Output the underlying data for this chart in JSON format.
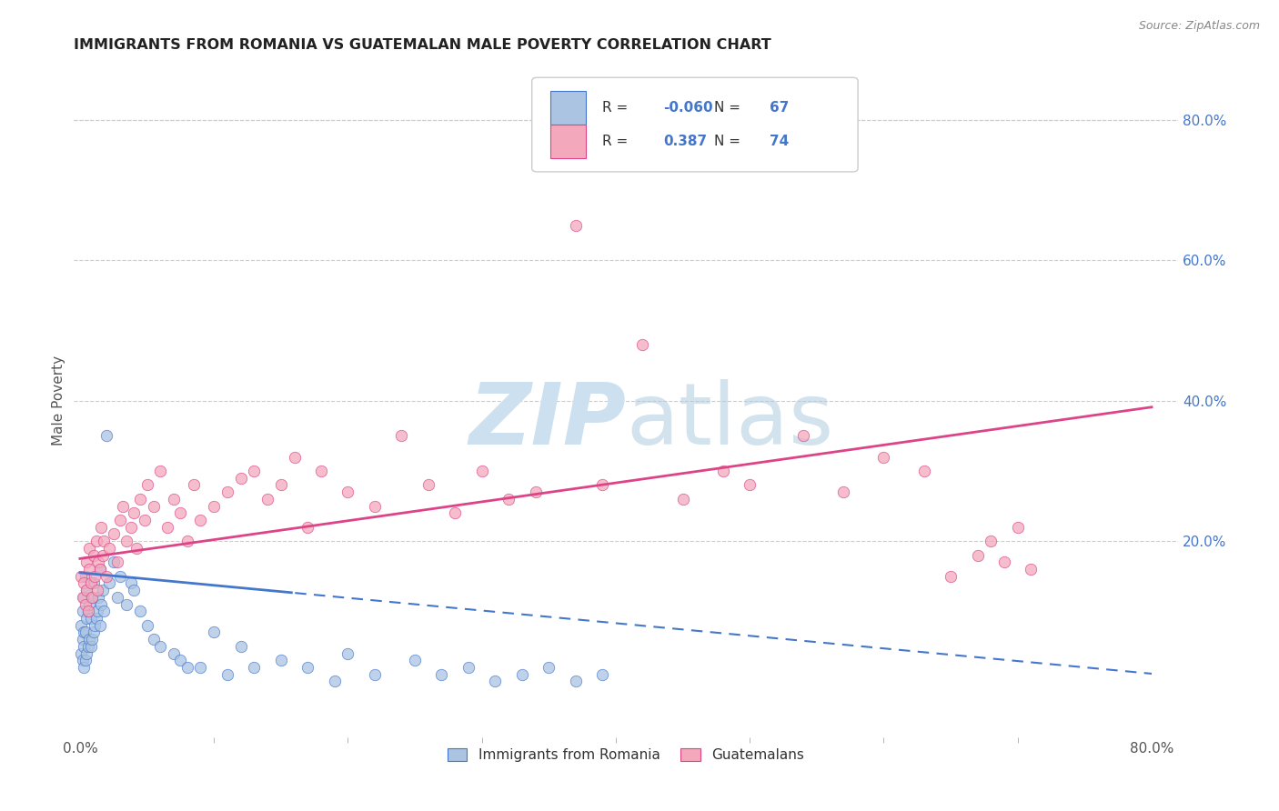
{
  "title": "IMMIGRANTS FROM ROMANIA VS GUATEMALAN MALE POVERTY CORRELATION CHART",
  "source": "Source: ZipAtlas.com",
  "ylabel": "Male Poverty",
  "right_yticks": [
    "80.0%",
    "60.0%",
    "40.0%",
    "20.0%"
  ],
  "right_ytick_vals": [
    0.8,
    0.6,
    0.4,
    0.2
  ],
  "xlim_min": -0.005,
  "xlim_max": 0.82,
  "ylim_min": -0.08,
  "ylim_max": 0.88,
  "romania_color": "#aac4e2",
  "romania_edge": "#4477cc",
  "guatemalan_color": "#f4a8bc",
  "guatemalan_edge": "#dd4488",
  "trend_romania_color": "#4477cc",
  "trend_guatemalan_color": "#dd4488",
  "background_color": "#ffffff",
  "grid_color": "#cccccc",
  "watermark_color": "#cce0f0",
  "legend_r1_label": "R = ",
  "legend_r1_val": "-0.060",
  "legend_n1_label": "N = ",
  "legend_n1_val": "67",
  "legend_r2_label": "R =  ",
  "legend_r2_val": "0.387",
  "legend_n2_label": "N = ",
  "legend_n2_val": "74",
  "romania_scatter_x": [
    0.001,
    0.001,
    0.002,
    0.002,
    0.002,
    0.003,
    0.003,
    0.003,
    0.003,
    0.004,
    0.004,
    0.004,
    0.005,
    0.005,
    0.005,
    0.006,
    0.006,
    0.007,
    0.007,
    0.008,
    0.008,
    0.009,
    0.009,
    0.01,
    0.01,
    0.011,
    0.012,
    0.013,
    0.014,
    0.015,
    0.015,
    0.016,
    0.017,
    0.018,
    0.02,
    0.022,
    0.025,
    0.028,
    0.03,
    0.035,
    0.038,
    0.04,
    0.045,
    0.05,
    0.055,
    0.06,
    0.07,
    0.075,
    0.08,
    0.09,
    0.1,
    0.11,
    0.12,
    0.13,
    0.15,
    0.17,
    0.19,
    0.2,
    0.22,
    0.25,
    0.27,
    0.29,
    0.31,
    0.33,
    0.35,
    0.37,
    0.39
  ],
  "romania_scatter_y": [
    0.04,
    0.08,
    0.03,
    0.06,
    0.1,
    0.02,
    0.05,
    0.07,
    0.12,
    0.03,
    0.07,
    0.15,
    0.04,
    0.09,
    0.13,
    0.05,
    0.1,
    0.06,
    0.11,
    0.05,
    0.09,
    0.06,
    0.12,
    0.07,
    0.14,
    0.08,
    0.09,
    0.1,
    0.12,
    0.08,
    0.16,
    0.11,
    0.13,
    0.1,
    0.35,
    0.14,
    0.17,
    0.12,
    0.15,
    0.11,
    0.14,
    0.13,
    0.1,
    0.08,
    0.06,
    0.05,
    0.04,
    0.03,
    0.02,
    0.02,
    0.07,
    0.01,
    0.05,
    0.02,
    0.03,
    0.02,
    0.0,
    0.04,
    0.01,
    0.03,
    0.01,
    0.02,
    0.0,
    0.01,
    0.02,
    0.0,
    0.01
  ],
  "guatemalan_scatter_x": [
    0.001,
    0.002,
    0.003,
    0.004,
    0.005,
    0.005,
    0.006,
    0.007,
    0.007,
    0.008,
    0.009,
    0.01,
    0.011,
    0.012,
    0.013,
    0.014,
    0.015,
    0.016,
    0.017,
    0.018,
    0.02,
    0.022,
    0.025,
    0.028,
    0.03,
    0.032,
    0.035,
    0.038,
    0.04,
    0.042,
    0.045,
    0.048,
    0.05,
    0.055,
    0.06,
    0.065,
    0.07,
    0.075,
    0.08,
    0.085,
    0.09,
    0.1,
    0.11,
    0.12,
    0.13,
    0.14,
    0.15,
    0.16,
    0.17,
    0.18,
    0.2,
    0.22,
    0.24,
    0.26,
    0.28,
    0.3,
    0.32,
    0.34,
    0.37,
    0.39,
    0.42,
    0.45,
    0.48,
    0.5,
    0.54,
    0.57,
    0.6,
    0.63,
    0.65,
    0.67,
    0.68,
    0.69,
    0.7,
    0.71
  ],
  "guatemalan_scatter_y": [
    0.15,
    0.12,
    0.14,
    0.11,
    0.13,
    0.17,
    0.1,
    0.16,
    0.19,
    0.14,
    0.12,
    0.18,
    0.15,
    0.2,
    0.13,
    0.17,
    0.16,
    0.22,
    0.18,
    0.2,
    0.15,
    0.19,
    0.21,
    0.17,
    0.23,
    0.25,
    0.2,
    0.22,
    0.24,
    0.19,
    0.26,
    0.23,
    0.28,
    0.25,
    0.3,
    0.22,
    0.26,
    0.24,
    0.2,
    0.28,
    0.23,
    0.25,
    0.27,
    0.29,
    0.3,
    0.26,
    0.28,
    0.32,
    0.22,
    0.3,
    0.27,
    0.25,
    0.35,
    0.28,
    0.24,
    0.3,
    0.26,
    0.27,
    0.65,
    0.28,
    0.48,
    0.26,
    0.3,
    0.28,
    0.35,
    0.27,
    0.32,
    0.3,
    0.15,
    0.18,
    0.2,
    0.17,
    0.22,
    0.16
  ]
}
